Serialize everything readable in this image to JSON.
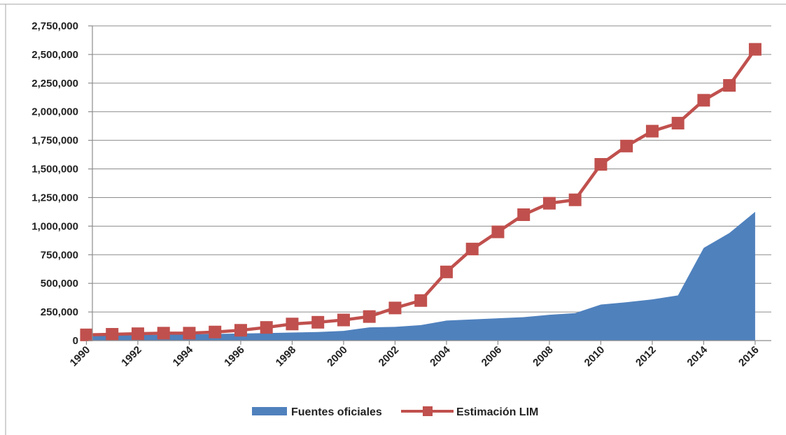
{
  "chart_data": {
    "type": "area+line",
    "title": "",
    "xlabel": "",
    "ylabel": "",
    "x": [
      1990,
      1991,
      1992,
      1993,
      1994,
      1995,
      1996,
      1997,
      1998,
      1999,
      2000,
      2001,
      2002,
      2003,
      2004,
      2005,
      2006,
      2007,
      2008,
      2009,
      2010,
      2011,
      2012,
      2013,
      2014,
      2015,
      2016
    ],
    "x_tick_labels": [
      "1990",
      "1992",
      "1994",
      "1996",
      "1998",
      "2000",
      "2002",
      "2004",
      "2006",
      "2008",
      "2010",
      "2012",
      "2014",
      "2016"
    ],
    "y_tick_labels": [
      "0",
      "250,000",
      "500,000",
      "750,000",
      "1,000,000",
      "1,250,000",
      "1,500,000",
      "1,750,000",
      "2,000,000",
      "2,250,000",
      "2,500,000",
      "2,750,000"
    ],
    "ylim": [
      0,
      2750000
    ],
    "grid": true,
    "legend_position": "bottom",
    "series": [
      {
        "name": "Fuentes oficiales",
        "kind": "area",
        "color": "#4f81bd",
        "values": [
          40000,
          45000,
          48000,
          52000,
          55000,
          58000,
          62000,
          66000,
          70000,
          75000,
          85000,
          115000,
          120000,
          135000,
          175000,
          185000,
          195000,
          205000,
          225000,
          240000,
          315000,
          335000,
          360000,
          395000,
          810000,
          940000,
          1125000
        ]
      },
      {
        "name": "Estimación LIM",
        "kind": "line",
        "marker": "square",
        "color": "#c0504d",
        "values": [
          50000,
          55000,
          60000,
          65000,
          65000,
          75000,
          90000,
          115000,
          145000,
          160000,
          180000,
          210000,
          285000,
          350000,
          600000,
          800000,
          950000,
          1100000,
          1200000,
          1230000,
          1540000,
          1700000,
          1830000,
          1900000,
          2100000,
          2230000,
          2545000
        ]
      }
    ]
  }
}
